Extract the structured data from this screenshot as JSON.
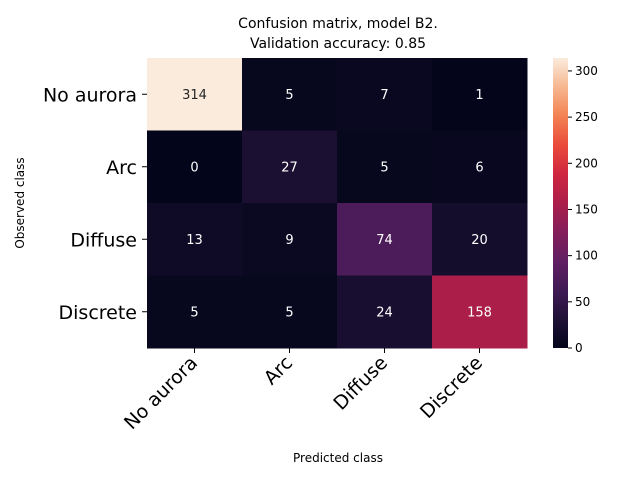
{
  "chart_data": {
    "type": "heatmap",
    "title_line1": "Confusion matrix, model B2.",
    "title_line2": "Validation accuracy: 0.85",
    "xlabel": "Predicted class",
    "ylabel": "Observed class",
    "x_categories": [
      "No aurora",
      "Arc",
      "Diffuse",
      "Discrete"
    ],
    "y_categories": [
      "No aurora",
      "Arc",
      "Diffuse",
      "Discrete"
    ],
    "matrix": [
      [
        314,
        5,
        7,
        1
      ],
      [
        0,
        27,
        5,
        6
      ],
      [
        13,
        9,
        74,
        20
      ],
      [
        5,
        5,
        24,
        158
      ]
    ],
    "colorbar": {
      "min": 0,
      "max": 314,
      "ticks": [
        0,
        50,
        100,
        150,
        200,
        250,
        300
      ],
      "colormap": "rocket"
    }
  }
}
